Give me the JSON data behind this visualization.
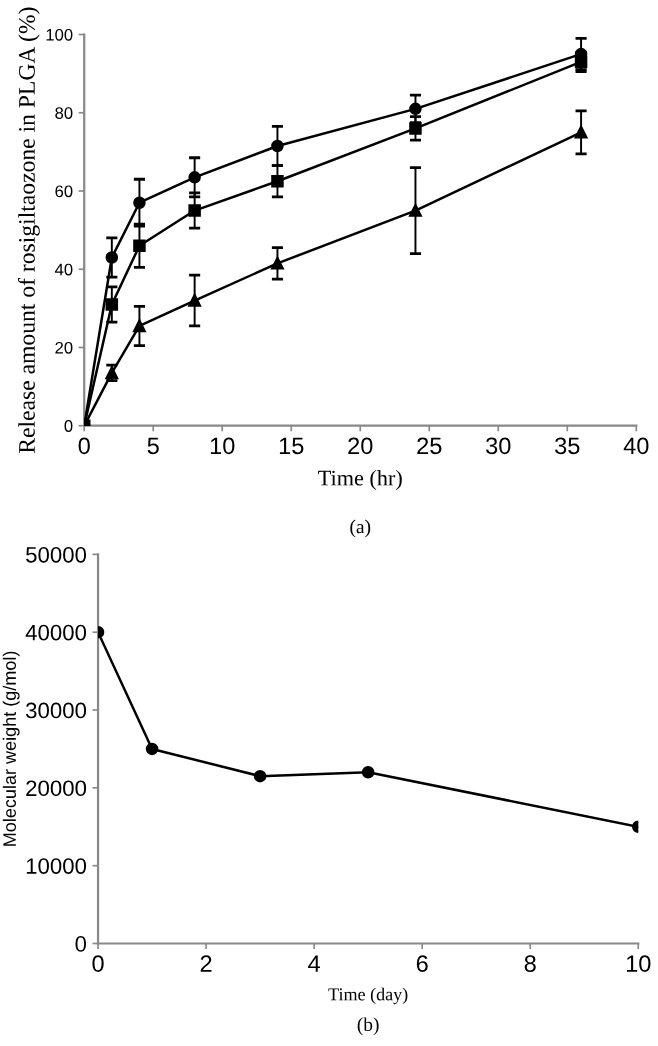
{
  "chart_data": [
    {
      "type": "line",
      "xlabel": "Time (hr)",
      "ylabel": "Release amount of rosigiltaozone in PLGA (%)",
      "annotations": [
        "(a)"
      ],
      "x": [
        0,
        2,
        4,
        8,
        14,
        24,
        36
      ],
      "xlim": [
        0,
        40
      ],
      "xticks": [
        0,
        5,
        10,
        15,
        20,
        25,
        30,
        35,
        40
      ],
      "ylim": [
        0,
        100
      ],
      "yticks": [
        0,
        20,
        40,
        60,
        80,
        100
      ],
      "grid": false,
      "legend": false,
      "series": [
        {
          "color": "#000000",
          "marker": "circle",
          "values": [
            0,
            43,
            57,
            63.5,
            71.5,
            81,
            95
          ],
          "errors": [
            null,
            5,
            6,
            5,
            5,
            3.5,
            4
          ]
        },
        {
          "color": "#000000",
          "marker": "square",
          "values": [
            0,
            31,
            46,
            55,
            62.5,
            76,
            93
          ],
          "errors": [
            null,
            4.5,
            5.5,
            4.5,
            4,
            3,
            2.5
          ]
        },
        {
          "color": "#000000",
          "marker": "triangle",
          "values": [
            0,
            13.5,
            25.5,
            32,
            41.5,
            55,
            75
          ],
          "errors": [
            null,
            2,
            5,
            6.5,
            4,
            11,
            5.5
          ]
        }
      ]
    },
    {
      "type": "line",
      "xlabel": "Time (day)",
      "ylabel": "Molecular weight (g/mol)",
      "annotations": [
        "(b)"
      ],
      "x": [
        0,
        1,
        3,
        5,
        10
      ],
      "xlim": [
        0,
        10
      ],
      "xticks": [
        0,
        2,
        4,
        6,
        8,
        10
      ],
      "ylim": [
        0,
        50000
      ],
      "yticks": [
        0,
        10000,
        20000,
        30000,
        40000,
        50000
      ],
      "grid": false,
      "legend": false,
      "series": [
        {
          "color": "#000000",
          "marker": "circle",
          "values": [
            40000,
            25000,
            21500,
            22000,
            15000
          ]
        }
      ]
    }
  ]
}
